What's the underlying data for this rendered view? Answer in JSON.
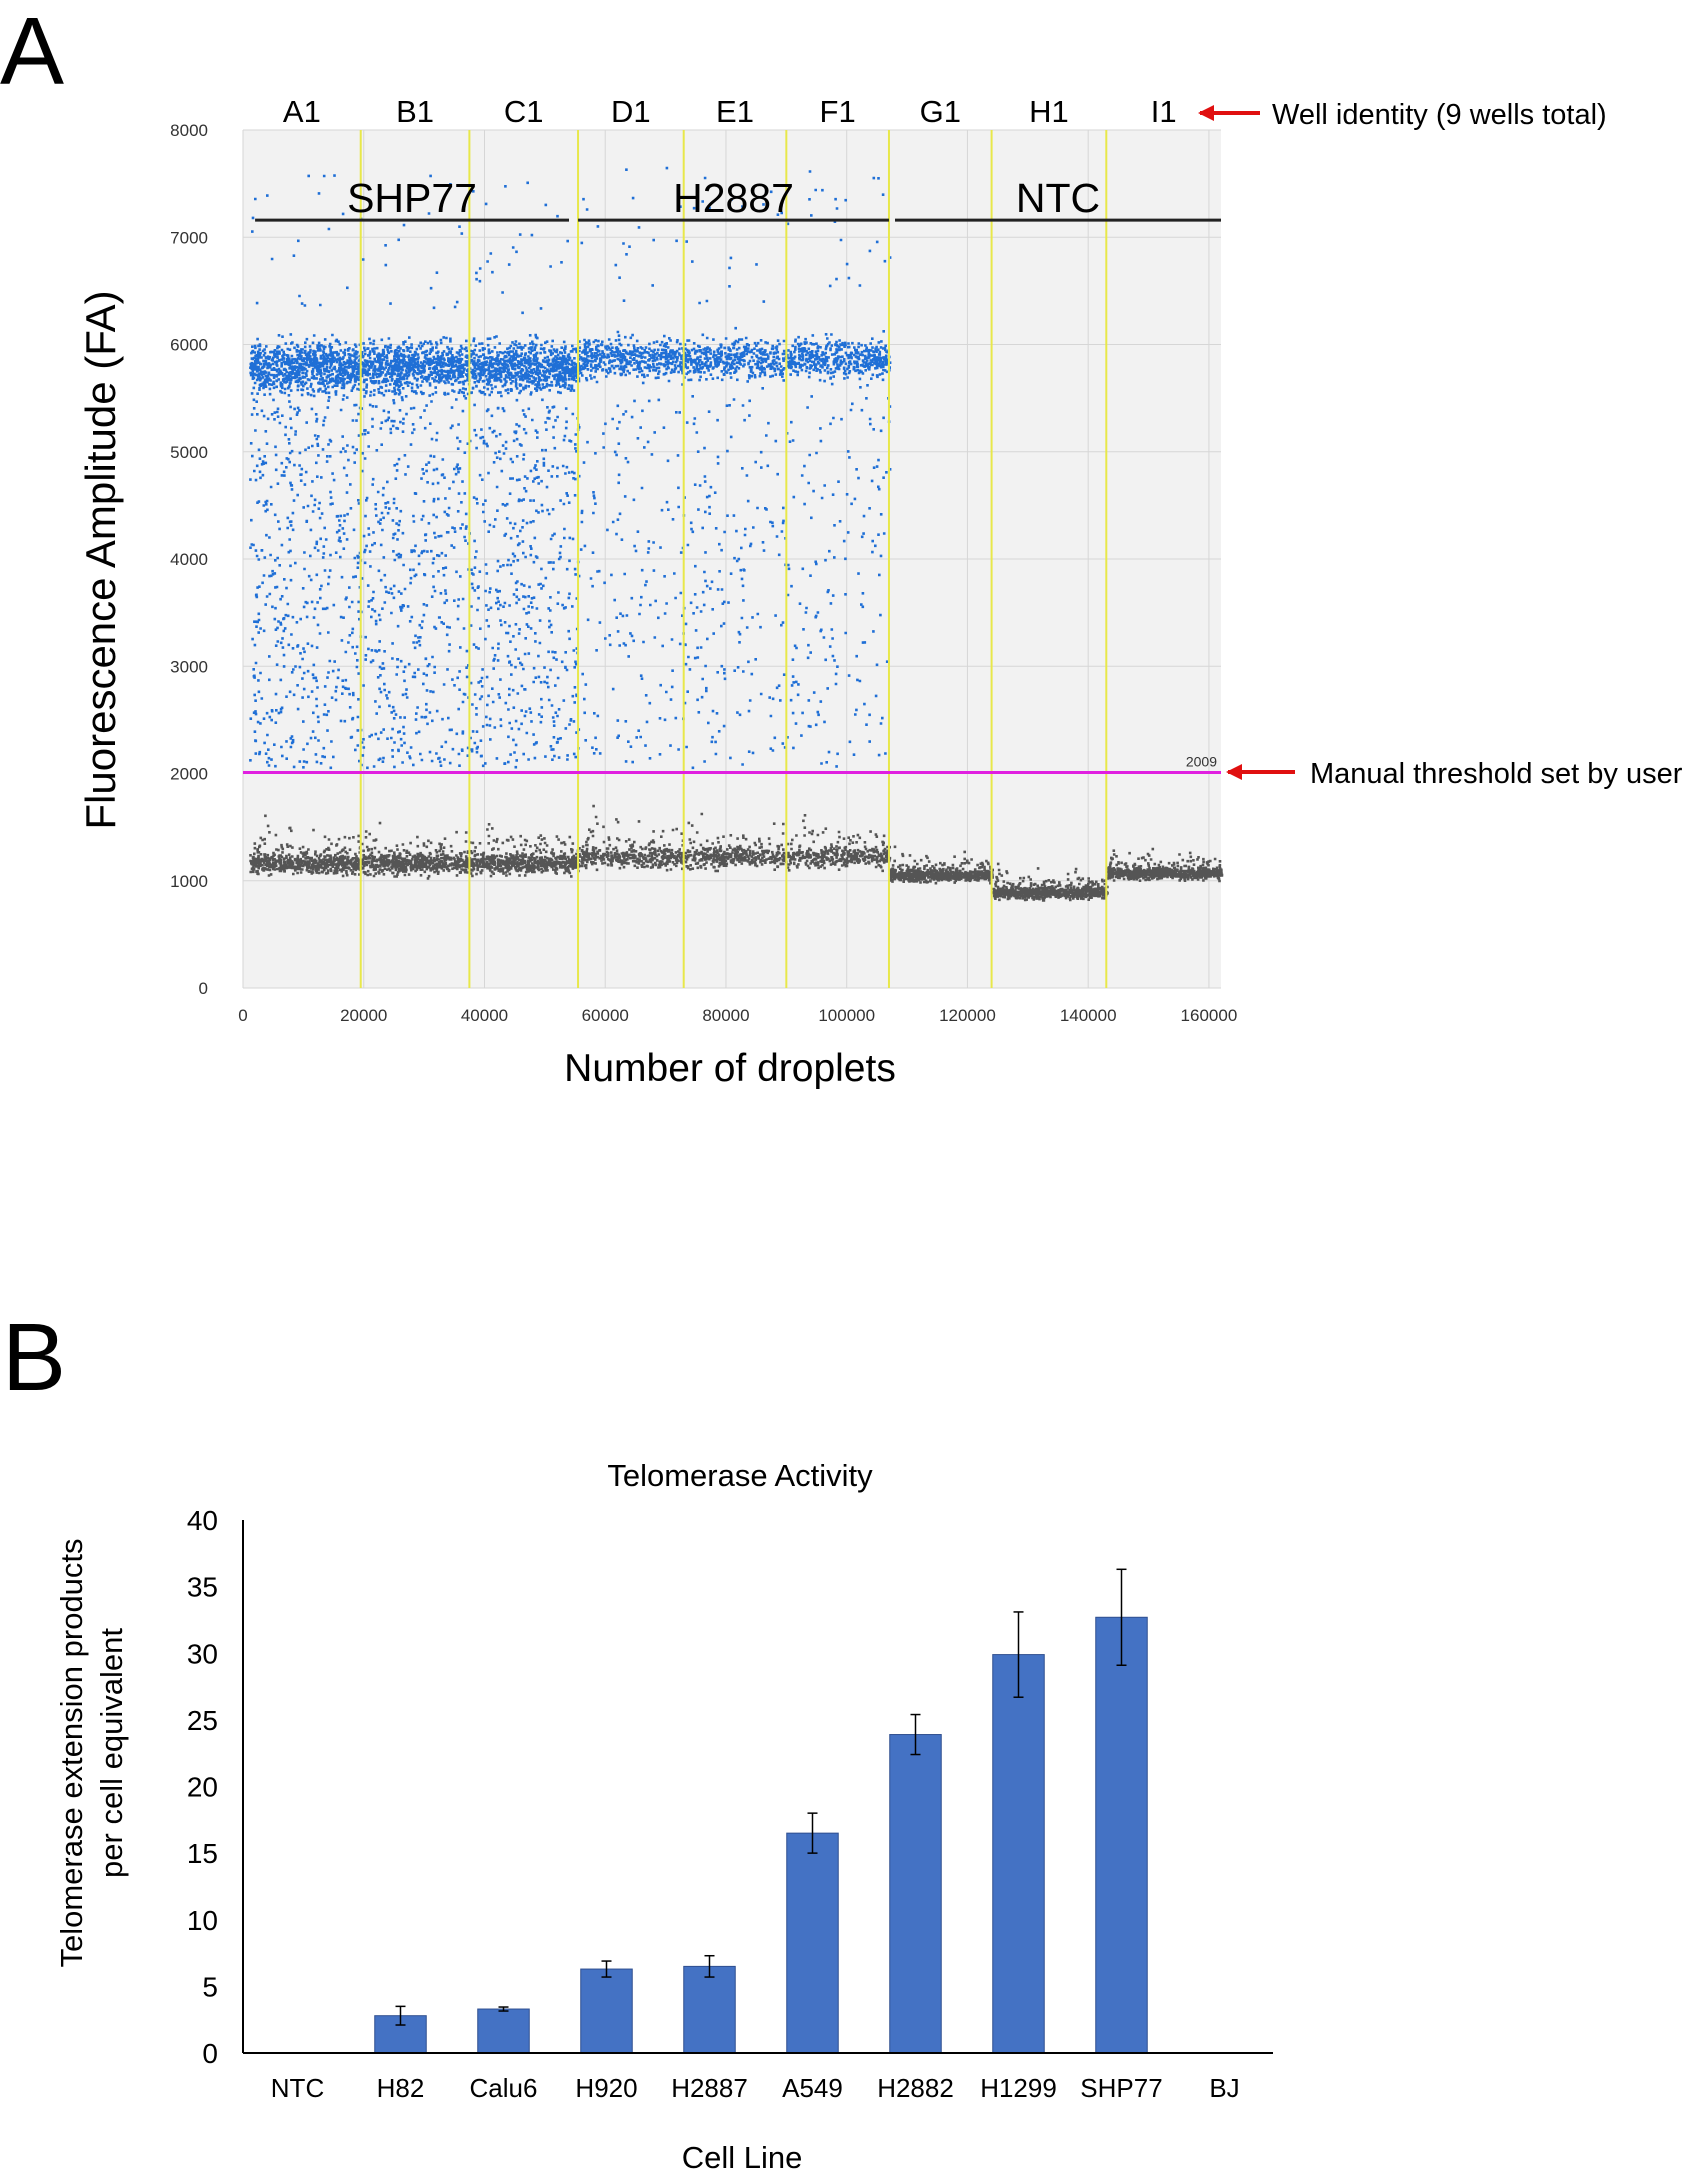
{
  "panels": {
    "a_label": "A",
    "b_label": "B"
  },
  "chart_data": [
    {
      "type": "scatter",
      "panel": "A",
      "title": "",
      "xlabel": "Number of droplets",
      "ylabel": "Fluorescence Amplitude (FA)",
      "xlim": [
        0,
        162000
      ],
      "ylim": [
        0,
        8000
      ],
      "xticks": [
        "0",
        "20000",
        "40000",
        "60000",
        "80000",
        "100000",
        "120000",
        "140000",
        "160000"
      ],
      "yticks": [
        "0",
        "1000",
        "2000",
        "3000",
        "4000",
        "5000",
        "6000",
        "7000",
        "8000"
      ],
      "grid": true,
      "wells": [
        {
          "name": "A1",
          "start": 0,
          "end": 19500
        },
        {
          "name": "B1",
          "start": 19500,
          "end": 37500
        },
        {
          "name": "C1",
          "start": 37500,
          "end": 55500
        },
        {
          "name": "D1",
          "start": 55500,
          "end": 73000
        },
        {
          "name": "E1",
          "start": 73000,
          "end": 90000
        },
        {
          "name": "F1",
          "start": 90000,
          "end": 107000
        },
        {
          "name": "G1",
          "start": 107000,
          "end": 124000
        },
        {
          "name": "H1",
          "start": 124000,
          "end": 143000
        },
        {
          "name": "I1",
          "start": 143000,
          "end": 162000
        }
      ],
      "sample_groups": [
        {
          "name": "SHP77",
          "start": 2000,
          "end": 54000
        },
        {
          "name": "H2887",
          "start": 55500,
          "end": 107000
        },
        {
          "name": "NTC",
          "start": 108000,
          "end": 162000
        }
      ],
      "threshold": {
        "value": 2009,
        "label": "2009",
        "color": "#e020e0"
      },
      "positive_color": "#1f6fd6",
      "negative_color": "#555555",
      "well_line_color": "#e8e84a",
      "series": [
        {
          "name": "positive droplets",
          "clusters": [
            {
              "x_range": [
                1000,
                55500
              ],
              "band_mean": 5800,
              "band_spread": 200,
              "band_count": 2600,
              "tail_count": 1500
            },
            {
              "x_range": [
                55500,
                107000
              ],
              "band_mean": 5880,
              "band_spread": 150,
              "band_count": 1400,
              "tail_count": 520
            }
          ]
        },
        {
          "name": "negative droplets",
          "clusters": [
            {
              "x_range": [
                1000,
                55500
              ],
              "band_mean": 1170,
              "band_spread": 75,
              "band_count": 2800
            },
            {
              "x_range": [
                55500,
                107000
              ],
              "band_mean": 1230,
              "band_spread": 80,
              "band_count": 2400
            },
            {
              "x_range": [
                107000,
                124000
              ],
              "band_mean": 1060,
              "band_spread": 45,
              "band_count": 700
            },
            {
              "x_range": [
                124000,
                143000
              ],
              "band_mean": 900,
              "band_spread": 45,
              "band_count": 750
            },
            {
              "x_range": [
                143000,
                162000
              ],
              "band_mean": 1080,
              "band_spread": 45,
              "band_count": 750
            }
          ]
        }
      ],
      "annotations": [
        {
          "text": "Well identity (9 wells total)",
          "target": "well labels",
          "arrow_color": "#e01010"
        },
        {
          "text": "Manual threshold set by user",
          "target": "threshold line",
          "arrow_color": "#e01010"
        }
      ]
    },
    {
      "type": "bar",
      "panel": "B",
      "title": "Telomerase Activity",
      "xlabel": "Cell Line",
      "ylabel": [
        "Telomerase extension products",
        "per cell equivalent"
      ],
      "categories": [
        "NTC",
        "H82",
        "Calu6",
        "H920",
        "H2887",
        "A549",
        "H2882",
        "H1299",
        "SHP77",
        "BJ"
      ],
      "values": [
        0,
        2.8,
        3.3,
        6.3,
        6.5,
        16.5,
        23.9,
        29.9,
        32.7,
        0
      ],
      "errors": [
        0,
        0.7,
        0.15,
        0.6,
        0.8,
        1.5,
        1.5,
        3.2,
        3.6,
        0
      ],
      "ylim": [
        0,
        40
      ],
      "yticks": [
        "0",
        "5",
        "10",
        "15",
        "20",
        "25",
        "30",
        "35",
        "40"
      ],
      "bar_color": "#4472c4",
      "grid": false
    }
  ]
}
